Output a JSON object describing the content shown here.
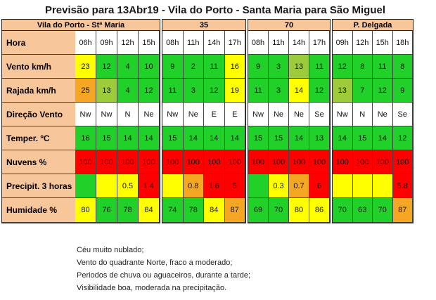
{
  "title": "Previsão para 13Abr19 - Vila do Porto - Santa Maria para São Miguel",
  "colors": {
    "header_orange": "#f7c69b",
    "green": "#22d02a",
    "olive": "#9ccc3c",
    "yellow": "#ffff00",
    "orange": "#f5a623",
    "red": "#ff0000",
    "white": "#ffffff"
  },
  "row_labels": [
    "Hora",
    "Vento km/h",
    "Rajada km/h",
    "Direção  Vento",
    "Temper. ºC",
    "Nuvens %",
    "Precipit.    3 horas",
    "Humidade %"
  ],
  "blocks": [
    {
      "name": "Vila do Porto - Stª Maria",
      "hours": [
        "06h",
        "09h",
        "12h",
        "15h"
      ],
      "rows": [
        [
          [
            "23",
            "yellow"
          ],
          [
            "12",
            "green"
          ],
          [
            "4",
            "green"
          ],
          [
            "10",
            "green"
          ]
        ],
        [
          [
            "25",
            "orange"
          ],
          [
            "13",
            "olive"
          ],
          [
            "4",
            "green"
          ],
          [
            "12",
            "green"
          ]
        ],
        [
          [
            "Nw",
            "white"
          ],
          [
            "Nw",
            "white"
          ],
          [
            "N",
            "white"
          ],
          [
            "Ne",
            "white"
          ]
        ],
        [
          [
            "16",
            "green"
          ],
          [
            "15",
            "green"
          ],
          [
            "14",
            "green"
          ],
          [
            "14",
            "green"
          ]
        ],
        [
          [
            "100",
            "red"
          ],
          [
            "100",
            "red"
          ],
          [
            "100",
            "red"
          ],
          [
            "100",
            "red"
          ]
        ],
        [
          [
            "",
            "green"
          ],
          [
            "",
            "yellow"
          ],
          [
            "0.5",
            "yellow"
          ],
          [
            "1.4",
            "red"
          ]
        ],
        [
          [
            "80",
            "yellow"
          ],
          [
            "76",
            "green"
          ],
          [
            "78",
            "green"
          ],
          [
            "84",
            "yellow"
          ]
        ]
      ]
    },
    {
      "name": "35",
      "hours": [
        "08h",
        "11h",
        "14h",
        "17h"
      ],
      "rows": [
        [
          [
            "9",
            "green"
          ],
          [
            "2",
            "green"
          ],
          [
            "11",
            "green"
          ],
          [
            "16",
            "yellow"
          ]
        ],
        [
          [
            "11",
            "green"
          ],
          [
            "3",
            "green"
          ],
          [
            "12",
            "green"
          ],
          [
            "19",
            "yellow"
          ]
        ],
        [
          [
            "Nw",
            "white"
          ],
          [
            "Ne",
            "white"
          ],
          [
            "E",
            "white"
          ],
          [
            "E",
            "white"
          ]
        ],
        [
          [
            "15",
            "green"
          ],
          [
            "14",
            "green"
          ],
          [
            "14",
            "green"
          ],
          [
            "14",
            "green"
          ]
        ],
        [
          [
            "100",
            "red"
          ],
          [
            "100",
            "red"
          ],
          [
            "100",
            "red"
          ],
          [
            "100",
            "red"
          ]
        ],
        [
          [
            "",
            "yellow"
          ],
          [
            "0.8",
            "orange"
          ],
          [
            "1.6",
            "red"
          ],
          [
            "5",
            "red"
          ]
        ],
        [
          [
            "74",
            "green"
          ],
          [
            "78",
            "green"
          ],
          [
            "84",
            "yellow"
          ],
          [
            "87",
            "orange"
          ]
        ]
      ]
    },
    {
      "name": "70",
      "hours": [
        "08h",
        "11h",
        "14h",
        "17h"
      ],
      "rows": [
        [
          [
            "9",
            "green"
          ],
          [
            "3",
            "green"
          ],
          [
            "13",
            "olive"
          ],
          [
            "11",
            "green"
          ]
        ],
        [
          [
            "11",
            "green"
          ],
          [
            "3",
            "green"
          ],
          [
            "14",
            "yellow"
          ],
          [
            "12",
            "green"
          ]
        ],
        [
          [
            "Nw",
            "white"
          ],
          [
            "Ne",
            "white"
          ],
          [
            "Ne",
            "white"
          ],
          [
            "Se",
            "white"
          ]
        ],
        [
          [
            "15",
            "green"
          ],
          [
            "15",
            "green"
          ],
          [
            "14",
            "green"
          ],
          [
            "13",
            "green"
          ]
        ],
        [
          [
            "100",
            "red"
          ],
          [
            "100",
            "red"
          ],
          [
            "100",
            "red"
          ],
          [
            "100",
            "red"
          ]
        ],
        [
          [
            "",
            "green"
          ],
          [
            "0.3",
            "yellow"
          ],
          [
            "0.7",
            "orange"
          ],
          [
            "6",
            "red"
          ]
        ],
        [
          [
            "69",
            "green"
          ],
          [
            "70",
            "green"
          ],
          [
            "80",
            "yellow"
          ],
          [
            "86",
            "yellow"
          ]
        ]
      ]
    },
    {
      "name": "P. Delgada",
      "hours": [
        "09h",
        "12h",
        "15h",
        "18h"
      ],
      "rows": [
        [
          [
            "12",
            "green"
          ],
          [
            "8",
            "green"
          ],
          [
            "11",
            "green"
          ],
          [
            "8",
            "green"
          ]
        ],
        [
          [
            "13",
            "olive"
          ],
          [
            "7",
            "green"
          ],
          [
            "12",
            "green"
          ],
          [
            "9",
            "green"
          ]
        ],
        [
          [
            "Nw",
            "white"
          ],
          [
            "N",
            "white"
          ],
          [
            "Ne",
            "white"
          ],
          [
            "Se",
            "white"
          ]
        ],
        [
          [
            "14",
            "green"
          ],
          [
            "15",
            "green"
          ],
          [
            "14",
            "green"
          ],
          [
            "12",
            "green"
          ]
        ],
        [
          [
            "100",
            "red"
          ],
          [
            "100",
            "red"
          ],
          [
            "100",
            "red"
          ],
          [
            "100",
            "red"
          ]
        ],
        [
          [
            "",
            "yellow"
          ],
          [
            "",
            "yellow"
          ],
          [
            "",
            "yellow"
          ],
          [
            "5.8",
            "red"
          ]
        ],
        [
          [
            "70",
            "green"
          ],
          [
            "63",
            "green"
          ],
          [
            "70",
            "green"
          ],
          [
            "87",
            "orange"
          ]
        ]
      ]
    }
  ],
  "notes": [
    "Céu muito nublado;",
    "Vento do quadrante Norte, fraco a moderado;",
    "Periodos de chuva ou aguaceiros, durante a tarde;",
    "Visibilidade boa, moderada na precipitação."
  ]
}
